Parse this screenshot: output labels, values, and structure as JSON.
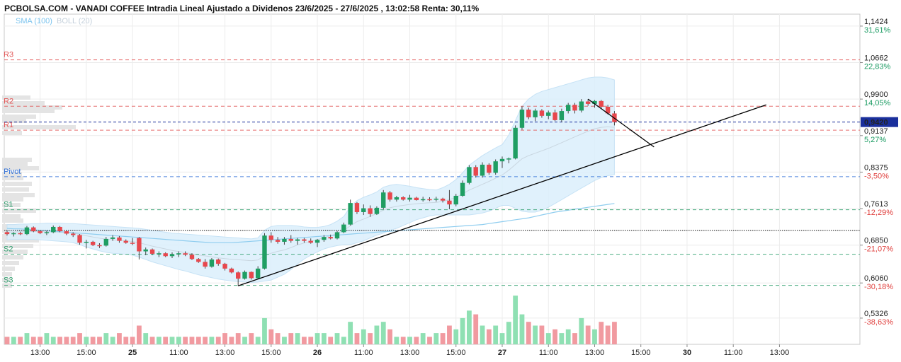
{
  "chart_data": {
    "type": "candlestick",
    "title": "PCBOLSA.COM - VANADI COFFEE Intradia Lineal Ajustado a Dividenos 23/6/2025 - 27/6/2025 , 13:02:58 Renta: 30,11%",
    "indicators": [
      {
        "label": "SMA (100)",
        "color": "#7cc4ee"
      },
      {
        "label": "BOLL (20)",
        "color": "#cfdbe6"
      }
    ],
    "ylim": [
      0.5,
      1.16
    ],
    "y_ticks": [
      {
        "price": 1.1424,
        "label": "1,1424",
        "pct": "31,61%",
        "pct_color": "#1a9b62"
      },
      {
        "price": 1.0662,
        "label": "1,0662",
        "pct": "22,83%",
        "pct_color": "#1a9b62"
      },
      {
        "price": 0.99,
        "label": "0,9900",
        "pct": "14,05%",
        "pct_color": "#1a9b62"
      },
      {
        "price": 0.9137,
        "label": "0,9137",
        "pct": "5,27%",
        "pct_color": "#1a9b62"
      },
      {
        "price": 0.8375,
        "label": "0,8375",
        "pct": "-3,50%",
        "pct_color": "#e0413f"
      },
      {
        "price": 0.7613,
        "label": "0,7613",
        "pct": "-12,29%",
        "pct_color": "#e0413f"
      },
      {
        "price": 0.685,
        "label": "0,6850",
        "pct": "-21,07%",
        "pct_color": "#e0413f"
      },
      {
        "price": 0.606,
        "label": "0,6060",
        "pct": "-30,18%",
        "pct_color": "#e0413f"
      },
      {
        "price": 0.5326,
        "label": "0,5326",
        "pct": "-38,63%",
        "pct_color": "#e0413f"
      }
    ],
    "current_price": {
      "value": 0.942,
      "label": "0,9420",
      "color": "#1a2f9c"
    },
    "levels": [
      {
        "name": "R3",
        "price": 1.072,
        "color": "#e25454"
      },
      {
        "name": "R2",
        "price": 0.975,
        "color": "#e25454"
      },
      {
        "name": "R1",
        "price": 0.925,
        "color": "#e25454"
      },
      {
        "name": "Pivot",
        "price": 0.828,
        "color": "#2f6fd6"
      },
      {
        "name": "S1",
        "price": 0.759,
        "color": "#2e9e6c"
      },
      {
        "name": "S2",
        "price": 0.666,
        "color": "#2e9e6c"
      },
      {
        "name": "S3",
        "price": 0.601,
        "color": "#2e9e6c"
      }
    ],
    "reference_price": 0.7158,
    "x_ticks": [
      {
        "idx": 5,
        "label": "13:00",
        "bold": false
      },
      {
        "idx": 12,
        "label": "15:00",
        "bold": false
      },
      {
        "idx": 19,
        "label": "25",
        "bold": true
      },
      {
        "idx": 26,
        "label": "11:00",
        "bold": false
      },
      {
        "idx": 33,
        "label": "13:00",
        "bold": false
      },
      {
        "idx": 40,
        "label": "15:00",
        "bold": false
      },
      {
        "idx": 47,
        "label": "26",
        "bold": true
      },
      {
        "idx": 54,
        "label": "11:00",
        "bold": false
      },
      {
        "idx": 61,
        "label": "13:00",
        "bold": false
      },
      {
        "idx": 68,
        "label": "15:00",
        "bold": false
      },
      {
        "idx": 75,
        "label": "27",
        "bold": true
      },
      {
        "idx": 82,
        "label": "11:00",
        "bold": false
      },
      {
        "idx": 89,
        "label": "13:00",
        "bold": false
      },
      {
        "idx": 96,
        "label": "15:00",
        "bold": false
      },
      {
        "idx": 103,
        "label": "30",
        "bold": true
      },
      {
        "idx": 110,
        "label": "11:00",
        "bold": false
      },
      {
        "idx": 117,
        "label": "13:00",
        "bold": false
      }
    ],
    "candles": [
      [
        0.712,
        0.716,
        0.705,
        0.708
      ],
      [
        0.708,
        0.712,
        0.703,
        0.71
      ],
      [
        0.71,
        0.713,
        0.706,
        0.708
      ],
      [
        0.708,
        0.725,
        0.706,
        0.722
      ],
      [
        0.722,
        0.724,
        0.712,
        0.714
      ],
      [
        0.714,
        0.716,
        0.708,
        0.71
      ],
      [
        0.71,
        0.715,
        0.706,
        0.712
      ],
      [
        0.712,
        0.726,
        0.71,
        0.723
      ],
      [
        0.723,
        0.725,
        0.712,
        0.714
      ],
      [
        0.714,
        0.716,
        0.706,
        0.709
      ],
      [
        0.709,
        0.712,
        0.702,
        0.706
      ],
      [
        0.706,
        0.708,
        0.686,
        0.69
      ],
      [
        0.69,
        0.696,
        0.678,
        0.692
      ],
      [
        0.692,
        0.694,
        0.683,
        0.685
      ],
      [
        0.685,
        0.689,
        0.679,
        0.684
      ],
      [
        0.684,
        0.702,
        0.682,
        0.698
      ],
      [
        0.698,
        0.706,
        0.694,
        0.701
      ],
      [
        0.701,
        0.704,
        0.69,
        0.694
      ],
      [
        0.694,
        0.697,
        0.688,
        0.69
      ],
      [
        0.69,
        0.7,
        0.685,
        0.688
      ],
      [
        0.7,
        0.702,
        0.655,
        0.672
      ],
      [
        0.672,
        0.68,
        0.664,
        0.676
      ],
      [
        0.676,
        0.678,
        0.664,
        0.667
      ],
      [
        0.667,
        0.672,
        0.66,
        0.668
      ],
      [
        0.668,
        0.67,
        0.66,
        0.662
      ],
      [
        0.662,
        0.67,
        0.658,
        0.666
      ],
      [
        0.666,
        0.672,
        0.66,
        0.668
      ],
      [
        0.668,
        0.672,
        0.662,
        0.665
      ],
      [
        0.665,
        0.668,
        0.654,
        0.656
      ],
      [
        0.656,
        0.658,
        0.648,
        0.65
      ],
      [
        0.65,
        0.656,
        0.636,
        0.64
      ],
      [
        0.64,
        0.658,
        0.638,
        0.655
      ],
      [
        0.655,
        0.657,
        0.642,
        0.646
      ],
      [
        0.646,
        0.648,
        0.632,
        0.636
      ],
      [
        0.636,
        0.638,
        0.626,
        0.628
      ],
      [
        0.628,
        0.63,
        0.6,
        0.615
      ],
      [
        0.615,
        0.632,
        0.613,
        0.629
      ],
      [
        0.629,
        0.63,
        0.613,
        0.616
      ],
      [
        0.616,
        0.641,
        0.614,
        0.636
      ],
      [
        0.636,
        0.71,
        0.634,
        0.705
      ],
      [
        0.705,
        0.712,
        0.69,
        0.696
      ],
      [
        0.696,
        0.702,
        0.688,
        0.692
      ],
      [
        0.692,
        0.702,
        0.686,
        0.698
      ],
      [
        0.698,
        0.706,
        0.69,
        0.694
      ],
      [
        0.694,
        0.7,
        0.686,
        0.697
      ],
      [
        0.697,
        0.7,
        0.69,
        0.694
      ],
      [
        0.694,
        0.699,
        0.688,
        0.69
      ],
      [
        0.69,
        0.698,
        0.681,
        0.696
      ],
      [
        0.696,
        0.706,
        0.692,
        0.702
      ],
      [
        0.702,
        0.707,
        0.697,
        0.699
      ],
      [
        0.699,
        0.715,
        0.697,
        0.712
      ],
      [
        0.712,
        0.732,
        0.71,
        0.728
      ],
      [
        0.728,
        0.78,
        0.726,
        0.773
      ],
      [
        0.773,
        0.775,
        0.75,
        0.754
      ],
      [
        0.754,
        0.77,
        0.748,
        0.762
      ],
      [
        0.762,
        0.768,
        0.744,
        0.75
      ],
      [
        0.75,
        0.766,
        0.748,
        0.763
      ],
      [
        0.763,
        0.8,
        0.76,
        0.795
      ],
      [
        0.795,
        0.798,
        0.776,
        0.78
      ],
      [
        0.78,
        0.788,
        0.776,
        0.785
      ],
      [
        0.785,
        0.787,
        0.778,
        0.78
      ],
      [
        0.78,
        0.79,
        0.776,
        0.784
      ],
      [
        0.784,
        0.786,
        0.778,
        0.779
      ],
      [
        0.779,
        0.786,
        0.776,
        0.781
      ],
      [
        0.781,
        0.785,
        0.777,
        0.78
      ],
      [
        0.78,
        0.786,
        0.776,
        0.782
      ],
      [
        0.782,
        0.784,
        0.774,
        0.778
      ],
      [
        0.778,
        0.8,
        0.76,
        0.77
      ],
      [
        0.77,
        0.792,
        0.766,
        0.788
      ],
      [
        0.788,
        0.82,
        0.786,
        0.815
      ],
      [
        0.815,
        0.852,
        0.812,
        0.848
      ],
      [
        0.848,
        0.852,
        0.826,
        0.83
      ],
      [
        0.83,
        0.858,
        0.826,
        0.853
      ],
      [
        0.853,
        0.856,
        0.832,
        0.836
      ],
      [
        0.836,
        0.864,
        0.832,
        0.86
      ],
      [
        0.86,
        0.87,
        0.846,
        0.865
      ],
      [
        0.865,
        0.868,
        0.856,
        0.866
      ],
      [
        0.866,
        0.935,
        0.864,
        0.93
      ],
      [
        0.93,
        0.975,
        0.926,
        0.968
      ],
      [
        0.968,
        0.972,
        0.948,
        0.952
      ],
      [
        0.952,
        0.97,
        0.944,
        0.966
      ],
      [
        0.966,
        0.969,
        0.951,
        0.955
      ],
      [
        0.955,
        0.966,
        0.948,
        0.962
      ],
      [
        0.962,
        0.968,
        0.944,
        0.946
      ],
      [
        0.946,
        0.97,
        0.942,
        0.965
      ],
      [
        0.965,
        0.982,
        0.96,
        0.978
      ],
      [
        0.978,
        0.982,
        0.96,
        0.966
      ],
      [
        0.966,
        0.99,
        0.962,
        0.985
      ],
      [
        0.985,
        0.99,
        0.976,
        0.98
      ],
      [
        0.98,
        0.988,
        0.972,
        0.986
      ],
      [
        0.986,
        0.988,
        0.97,
        0.974
      ],
      [
        0.974,
        0.978,
        0.958,
        0.96
      ],
      [
        0.96,
        0.965,
        0.935,
        0.942
      ]
    ],
    "volumes": [
      2,
      2,
      2,
      3,
      2,
      2,
      3,
      2,
      2,
      2,
      2,
      3,
      2,
      2,
      2,
      3,
      2,
      3,
      2,
      2,
      5,
      3,
      2,
      2,
      2,
      2,
      2,
      2,
      2,
      2,
      2,
      2,
      2,
      3,
      2,
      3,
      2,
      3,
      2,
      7,
      4,
      3,
      2,
      3,
      3,
      2,
      2,
      3,
      3,
      2,
      3,
      2,
      6,
      3,
      4,
      3,
      5,
      6,
      4,
      2,
      2,
      2,
      2,
      3,
      2,
      3,
      3,
      5,
      4,
      7,
      9,
      8,
      5,
      4,
      5,
      3,
      6,
      13,
      8,
      6,
      5,
      5,
      3,
      4,
      3,
      4,
      3,
      7,
      5,
      4,
      6,
      5,
      6
    ],
    "sma100": [
      0.72,
      0.719,
      0.719,
      0.718,
      0.717,
      0.716,
      0.715,
      0.714,
      0.713,
      0.712,
      0.711,
      0.71,
      0.709,
      0.708,
      0.707,
      0.706,
      0.705,
      0.704,
      0.703,
      0.702,
      0.701,
      0.7,
      0.699,
      0.698,
      0.697,
      0.696,
      0.695,
      0.694,
      0.693,
      0.692,
      0.691,
      0.69,
      0.69,
      0.69,
      0.69,
      0.691,
      0.692,
      0.693,
      0.694,
      0.695,
      0.696,
      0.697,
      0.698,
      0.699,
      0.7,
      0.701,
      0.702,
      0.703,
      0.704,
      0.705,
      0.706,
      0.707,
      0.708,
      0.709,
      0.71,
      0.711,
      0.712,
      0.713,
      0.714,
      0.715,
      0.716,
      0.717,
      0.718,
      0.719,
      0.72,
      0.721,
      0.722,
      0.723,
      0.724,
      0.725,
      0.726,
      0.727,
      0.728,
      0.73,
      0.732,
      0.734,
      0.736,
      0.738,
      0.74,
      0.742,
      0.745,
      0.748,
      0.751,
      0.754,
      0.756,
      0.758,
      0.76,
      0.762,
      0.764,
      0.766,
      0.768,
      0.77,
      0.772
    ],
    "boll_upper": [
      0.728,
      0.728,
      0.729,
      0.729,
      0.73,
      0.73,
      0.731,
      0.731,
      0.731,
      0.73,
      0.73,
      0.729,
      0.728,
      0.727,
      0.726,
      0.725,
      0.724,
      0.723,
      0.722,
      0.721,
      0.72,
      0.718,
      0.716,
      0.714,
      0.712,
      0.71,
      0.709,
      0.708,
      0.707,
      0.706,
      0.705,
      0.704,
      0.703,
      0.702,
      0.701,
      0.7,
      0.699,
      0.698,
      0.7,
      0.716,
      0.724,
      0.726,
      0.726,
      0.726,
      0.725,
      0.723,
      0.722,
      0.722,
      0.724,
      0.728,
      0.735,
      0.745,
      0.765,
      0.778,
      0.785,
      0.79,
      0.796,
      0.806,
      0.81,
      0.812,
      0.81,
      0.808,
      0.805,
      0.803,
      0.801,
      0.8,
      0.805,
      0.812,
      0.822,
      0.836,
      0.852,
      0.862,
      0.872,
      0.88,
      0.888,
      0.895,
      0.915,
      0.945,
      0.975,
      0.99,
      1.0,
      1.006,
      1.01,
      1.014,
      1.018,
      1.022,
      1.026,
      1.03,
      1.034,
      1.036,
      1.036,
      1.034,
      1.03
    ],
    "boll_lower": [
      0.696,
      0.697,
      0.697,
      0.697,
      0.697,
      0.696,
      0.695,
      0.694,
      0.693,
      0.692,
      0.69,
      0.686,
      0.681,
      0.677,
      0.673,
      0.67,
      0.668,
      0.667,
      0.666,
      0.664,
      0.66,
      0.655,
      0.65,
      0.646,
      0.642,
      0.638,
      0.634,
      0.631,
      0.627,
      0.623,
      0.62,
      0.617,
      0.614,
      0.612,
      0.61,
      0.609,
      0.608,
      0.607,
      0.608,
      0.61,
      0.612,
      0.618,
      0.624,
      0.634,
      0.646,
      0.656,
      0.664,
      0.671,
      0.677,
      0.681,
      0.684,
      0.686,
      0.686,
      0.69,
      0.694,
      0.7,
      0.706,
      0.71,
      0.716,
      0.72,
      0.726,
      0.732,
      0.738,
      0.742,
      0.746,
      0.748,
      0.748,
      0.748,
      0.748,
      0.748,
      0.748,
      0.75,
      0.752,
      0.756,
      0.762,
      0.768,
      0.768,
      0.762,
      0.756,
      0.754,
      0.754,
      0.758,
      0.764,
      0.772,
      0.78,
      0.788,
      0.796,
      0.804,
      0.812,
      0.82,
      0.826,
      0.83,
      0.832
    ],
    "trendlines": [
      {
        "x1": 35,
        "y1": 0.6,
        "x2": 115,
        "y2": 0.978
      },
      {
        "x1": 88,
        "y1": 0.99,
        "x2": 98,
        "y2": 0.89
      }
    ]
  }
}
